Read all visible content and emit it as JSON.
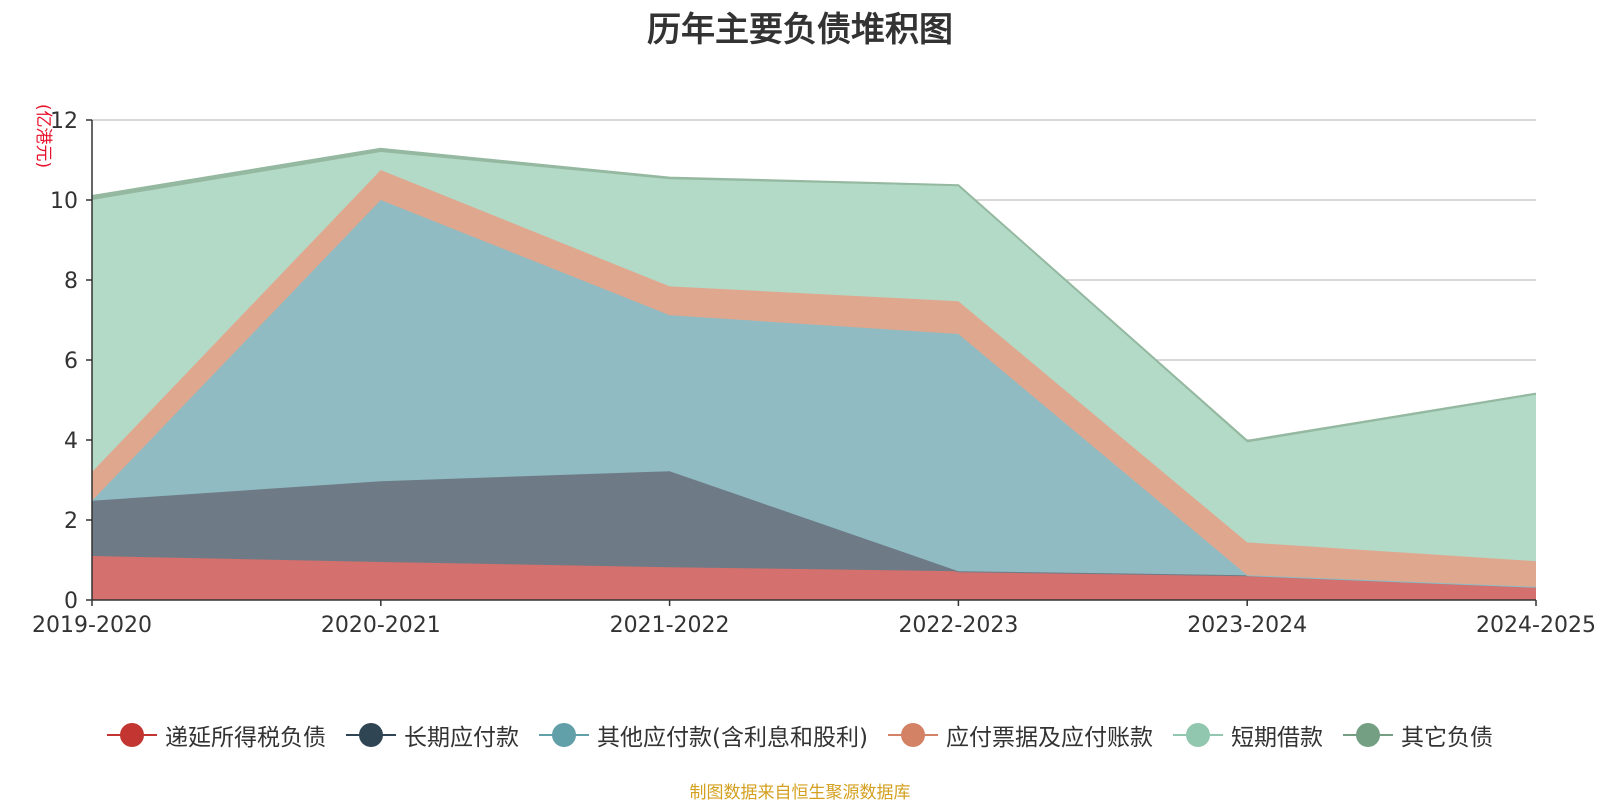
{
  "chart_data": {
    "type": "area",
    "title": "历年主要负债堆积图",
    "ylabel": "(亿港元)",
    "xlabel": "",
    "categories": [
      "2019-2020",
      "2020-2021",
      "2021-2022",
      "2022-2023",
      "2023-2024",
      "2024-2025"
    ],
    "ylim": [
      0,
      12
    ],
    "yticks": [
      0,
      2,
      4,
      6,
      8,
      10,
      12
    ],
    "grid": true,
    "legend_position": "bottom",
    "stacked": true,
    "series": [
      {
        "name": "递延所得税负债",
        "color": "#c23531",
        "fill": "#d4706d",
        "values": [
          1.1,
          0.95,
          0.82,
          0.72,
          0.62,
          0.33
        ]
      },
      {
        "name": "长期应付款",
        "color": "#2f4554",
        "fill": "#6e7b86",
        "values": [
          1.38,
          2.02,
          2.4,
          0.0,
          0.0,
          0.0
        ]
      },
      {
        "name": "其他应付款(含利息和股利)",
        "color": "#61a0a8",
        "fill": "#90bbc2",
        "values": [
          0.0,
          7.03,
          3.9,
          5.93,
          0.0,
          0.0
        ]
      },
      {
        "name": "应付票据及应付账款",
        "color": "#d48265",
        "fill": "#e0a78f",
        "values": [
          0.72,
          0.75,
          0.72,
          0.82,
          0.82,
          0.64
        ]
      },
      {
        "name": "短期借款",
        "color": "#91c7ae",
        "fill": "#b2dac7",
        "values": [
          6.8,
          0.45,
          2.68,
          2.88,
          2.5,
          4.16
        ]
      },
      {
        "name": "其它负债",
        "color": "#749f83",
        "fill": "#95b8a0",
        "values": [
          0.1,
          0.08,
          0.04,
          0.02,
          0.04,
          0.03
        ]
      }
    ],
    "source_note": "制图数据来自恒生聚源数据库"
  }
}
